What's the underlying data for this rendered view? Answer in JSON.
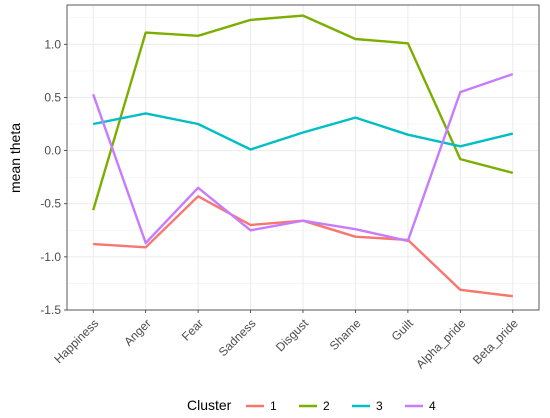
{
  "chart_data": {
    "type": "line",
    "title": "",
    "xlabel": "",
    "ylabel": "mean theta",
    "categories": [
      "Happiness",
      "Anger",
      "Fear",
      "Sadness",
      "Disgust",
      "Shame",
      "Guilt",
      "Alpha_pride",
      "Beta_pride"
    ],
    "ylim": [
      -1.5,
      1.37
    ],
    "y_ticks": [
      -1.5,
      -1.0,
      -0.5,
      0.0,
      0.5,
      1.0
    ],
    "y_tick_labels": [
      "-1.5",
      "-1.0",
      "-0.5",
      "0.0",
      "0.5",
      "1.0"
    ],
    "grid": true,
    "legend": {
      "title": "Cluster",
      "position": "bottom"
    },
    "series": [
      {
        "name": "1",
        "color": "#F8766D",
        "values": [
          -0.88,
          -0.91,
          -0.43,
          -0.7,
          -0.66,
          -0.81,
          -0.84,
          -1.31,
          -1.37
        ]
      },
      {
        "name": "2",
        "color": "#7CAE00",
        "values": [
          -0.56,
          1.11,
          1.08,
          1.23,
          1.27,
          1.05,
          1.01,
          -0.08,
          -0.21
        ]
      },
      {
        "name": "3",
        "color": "#00BFC4",
        "values": [
          0.25,
          0.35,
          0.25,
          0.01,
          0.17,
          0.31,
          0.15,
          0.04,
          0.16
        ]
      },
      {
        "name": "4",
        "color": "#C77CFF",
        "values": [
          0.53,
          -0.87,
          -0.35,
          -0.75,
          -0.66,
          -0.74,
          -0.85,
          0.55,
          0.72
        ]
      }
    ]
  }
}
